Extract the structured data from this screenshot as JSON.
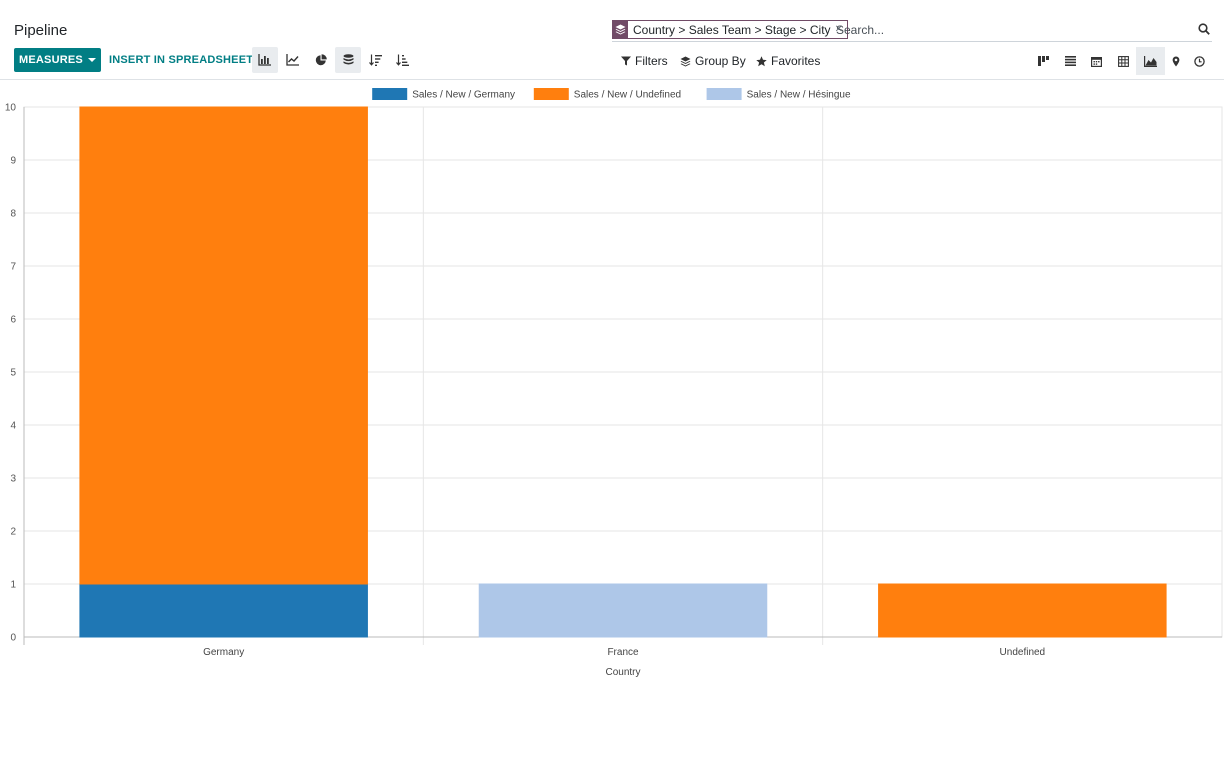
{
  "page": {
    "title": "Pipeline"
  },
  "toolbar": {
    "measures_label": "MEASURES",
    "spreadsheet_label": "INSERT IN SPREADSHEET",
    "chart_modes": [
      {
        "name": "bar-chart-icon",
        "active": true
      },
      {
        "name": "line-chart-icon",
        "active": false
      },
      {
        "name": "pie-chart-icon",
        "active": false
      },
      {
        "name": "stacked-icon",
        "active": true
      },
      {
        "name": "sort-descending-icon",
        "active": false
      },
      {
        "name": "sort-ascending-icon",
        "active": false
      }
    ]
  },
  "search": {
    "facet_label": "Country > Sales Team > Stage > City",
    "facet_icon": "layers-icon",
    "placeholder": "Search..."
  },
  "filters": {
    "filters_label": "Filters",
    "groupby_label": "Group By",
    "favorites_label": "Favorites"
  },
  "views": [
    {
      "name": "kanban-view-icon",
      "active": false
    },
    {
      "name": "list-view-icon",
      "active": false
    },
    {
      "name": "calendar-view-icon",
      "active": false
    },
    {
      "name": "pivot-view-icon",
      "active": false
    },
    {
      "name": "graph-view-icon",
      "active": true
    },
    {
      "name": "map-view-icon",
      "active": false
    },
    {
      "name": "activity-view-icon",
      "active": false
    }
  ],
  "chart_data": {
    "type": "bar",
    "stacked": true,
    "categories": [
      "Germany",
      "France",
      "Undefined"
    ],
    "series": [
      {
        "name": "Sales / New / Germany",
        "color": "#1f77b4",
        "values": [
          1,
          0,
          0
        ]
      },
      {
        "name": "Sales / New / Undefined",
        "color": "#ff7f0e",
        "values": [
          9,
          0,
          1
        ]
      },
      {
        "name": "Sales / New / Hésingue",
        "color": "#aec7e8",
        "values": [
          0,
          1,
          0
        ]
      }
    ],
    "xlabel": "Country",
    "ylabel": "",
    "ylim": [
      0,
      10
    ],
    "yticks": [
      0,
      1,
      2,
      3,
      4,
      5,
      6,
      7,
      8,
      9,
      10
    ],
    "grid": true,
    "legend_position": "top-center"
  }
}
